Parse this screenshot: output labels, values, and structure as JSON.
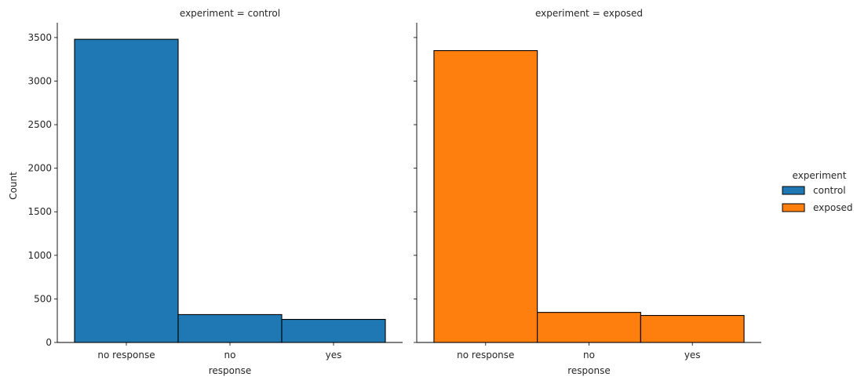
{
  "chart_data": {
    "type": "bar",
    "ylabel": "Count",
    "ylim": [
      0,
      3670
    ],
    "yticks": [
      0,
      500,
      1000,
      1500,
      2000,
      2500,
      3000,
      3500
    ],
    "grid": false,
    "categories": [
      "no response",
      "no",
      "yes"
    ],
    "legend": {
      "title": "experiment",
      "placement": "right",
      "entries": [
        {
          "label": "control",
          "color": "#1f77b4"
        },
        {
          "label": "exposed",
          "color": "#ff7f0e"
        }
      ]
    },
    "panels": [
      {
        "title": "experiment = control",
        "xlabel": "response",
        "color": "#1f77b4",
        "values": [
          3480,
          320,
          265
        ]
      },
      {
        "title": "experiment = exposed",
        "xlabel": "response",
        "color": "#ff7f0e",
        "values": [
          3350,
          345,
          310
        ]
      }
    ]
  }
}
